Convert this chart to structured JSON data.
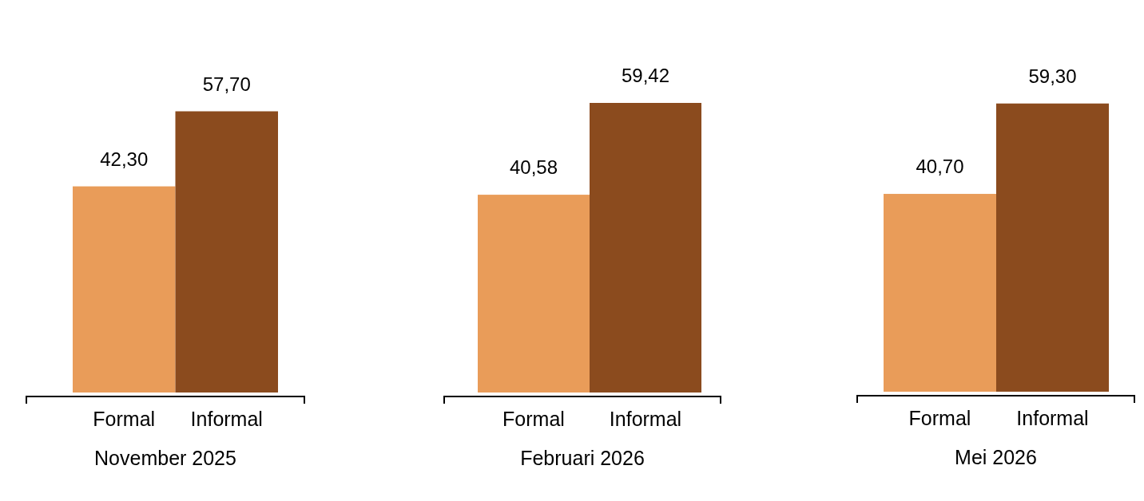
{
  "chart_data": [
    {
      "type": "bar",
      "xlabel": "November 2025",
      "categories": [
        "Formal",
        "Informal"
      ],
      "values": [
        42.3,
        57.7
      ],
      "colors": [
        "#e99c59",
        "#8b4b1e"
      ],
      "data_labels": true,
      "value_labels": [
        "42,30",
        "57,70"
      ]
    },
    {
      "type": "bar",
      "xlabel": "Februari 2026",
      "categories": [
        "Formal",
        "Informal"
      ],
      "values": [
        40.58,
        59.42
      ],
      "colors": [
        "#e99c59",
        "#8b4b1e"
      ],
      "data_labels": true,
      "value_labels": [
        "40,58",
        "59,42"
      ]
    },
    {
      "type": "bar",
      "xlabel": "Mei 2026",
      "categories": [
        "Formal",
        "Informal"
      ],
      "values": [
        40.7,
        59.3
      ],
      "colors": [
        "#e99c59",
        "#8b4b1e"
      ],
      "data_labels": true,
      "value_labels": [
        "40,70",
        "59,30"
      ]
    }
  ]
}
